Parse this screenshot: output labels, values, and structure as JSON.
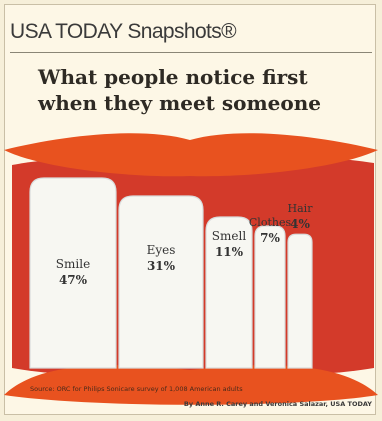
{
  "header": {
    "brand": "USA TODAY Snapshots®",
    "title_line1": "What people notice first",
    "title_line2": "when they meet someone"
  },
  "chart_data": {
    "type": "bar",
    "title": "What people notice first when they meet someone",
    "categories": [
      "Smile",
      "Eyes",
      "Smell",
      "Clothes",
      "Hair"
    ],
    "values": [
      47,
      31,
      11,
      7,
      4
    ],
    "value_labels": [
      "47%",
      "31%",
      "11%",
      "7%",
      "4%"
    ],
    "unit": "%",
    "source": "Source: ORC for Philips Sonicare survey of 1,008 American adults",
    "credit": "By Anne R. Carey and Veronica Salazar, USA TODAY"
  },
  "colors": {
    "lips": "#e8521f",
    "lips_dark": "#c8381a",
    "mouth": "#d33a2a",
    "teeth": "#f7f7f2",
    "teeth_shade": "#d9dcdc",
    "text": "#333333"
  }
}
